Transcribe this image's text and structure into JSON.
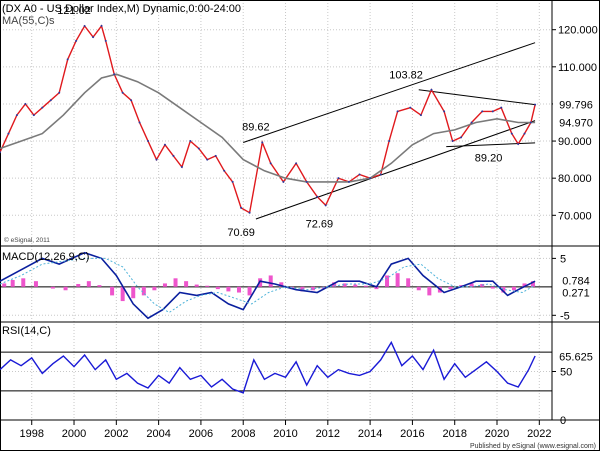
{
  "chart_data": {
    "type": "line",
    "header": {
      "title": "(DX A0 - US Dollar Index,M) Dynamic,0:00-24:00",
      "ma_label": "MA(55,C)s",
      "watermark": "© eSignal, 2011"
    },
    "x_ticks": [
      "1998",
      "2000",
      "2002",
      "2004",
      "2006",
      "2008",
      "2010",
      "2012",
      "2014",
      "2016",
      "2018",
      "2020",
      "2022"
    ],
    "price_panel": {
      "y_range": [
        62,
        128
      ],
      "y_ticks": [
        "120.000",
        "110.000",
        "100.000",
        "90.000",
        "80.000",
        "70.000"
      ],
      "last_value_label": "99.796",
      "ma_value_label": "94.970",
      "series": [
        {
          "key": "price",
          "color": "#e0191d",
          "x": [
            1996.5,
            1996.9,
            1997.3,
            1997.7,
            1998.1,
            1998.5,
            1998.9,
            1999.3,
            1999.7,
            2000.1,
            2000.5,
            2000.9,
            2001.3,
            2001.5,
            2001.9,
            2002.3,
            2002.7,
            2003.1,
            2003.5,
            2003.9,
            2004.3,
            2004.7,
            2005.1,
            2005.5,
            2005.9,
            2006.3,
            2006.7,
            2007.1,
            2007.5,
            2007.9,
            2008.3,
            2008.9,
            2009.3,
            2009.9,
            2010.5,
            2011.0,
            2011.5,
            2011.9,
            2012.5,
            2013.0,
            2013.5,
            2014.0,
            2014.5,
            2014.9,
            2015.3,
            2015.9,
            2016.4,
            2016.9,
            2017.5,
            2017.9,
            2018.3,
            2018.8,
            2019.3,
            2019.8,
            2020.2,
            2020.7,
            2021.0,
            2021.3,
            2021.6,
            2021.8
          ],
          "y": [
            87,
            92,
            97,
            100,
            97,
            99,
            101,
            103,
            112,
            117,
            121,
            118,
            121.02,
            117,
            108,
            103,
            101,
            95,
            90,
            85,
            89,
            86,
            83,
            90,
            88,
            85,
            86,
            82,
            79,
            72,
            70.69,
            89.62,
            84,
            79,
            84,
            79,
            75,
            72.69,
            80,
            79,
            81,
            80,
            81,
            90,
            98,
            99,
            97,
            103.82,
            98,
            90,
            91,
            95,
            98,
            98,
            99,
            92,
            89.2,
            92,
            95,
            99.8
          ]
        },
        {
          "key": "ma55",
          "color": "#7a7a7a",
          "x": [
            1996.5,
            1997.5,
            1998.5,
            1999.5,
            2000.5,
            2001.3,
            2002.0,
            2003.0,
            2004.0,
            2005.0,
            2006.0,
            2007.0,
            2008.0,
            2009.0,
            2010.0,
            2011.0,
            2012.0,
            2013.0,
            2014.0,
            2015.0,
            2016.0,
            2017.0,
            2018.0,
            2019.0,
            2020.0,
            2021.0,
            2021.8
          ],
          "y": [
            88,
            90,
            92,
            97,
            103,
            107,
            108,
            106,
            103,
            99,
            95,
            91,
            85,
            82,
            80,
            79,
            79,
            79,
            80,
            84,
            89,
            92,
            93,
            95,
            96,
            95,
            95
          ]
        }
      ],
      "channel_lines": [
        {
          "x": [
            2008.0,
            2021.8
          ],
          "y": [
            89.62,
            116.5
          ]
        },
        {
          "x": [
            2008.6,
            2021.8
          ],
          "y": [
            69.0,
            95.5
          ]
        },
        {
          "x": [
            2016.3,
            2021.8
          ],
          "y": [
            103.82,
            99.8
          ]
        },
        {
          "x": [
            2017.6,
            2021.8
          ],
          "y": [
            88.5,
            89.5
          ]
        }
      ],
      "annotations": [
        {
          "text": "121.02",
          "x": 2000.0,
          "y": 124.2
        },
        {
          "text": "89.62",
          "x": 2008.6,
          "y": 92.8
        },
        {
          "text": "103.82",
          "x": 2015.7,
          "y": 106.8
        },
        {
          "text": "70.69",
          "x": 2007.9,
          "y": 64.4
        },
        {
          "text": "72.69",
          "x": 2011.6,
          "y": 66.7
        },
        {
          "text": "89.20",
          "x": 2019.6,
          "y": 84.5
        }
      ]
    },
    "macd_panel": {
      "label": "MACD(12,26,9,C)",
      "y_range": [
        -6,
        7
      ],
      "y_ticks": [
        "5",
        "-5"
      ],
      "value_labels": [
        "0.784",
        "0.271"
      ],
      "series": [
        {
          "key": "macd",
          "color": "#0a1f9e",
          "x": [
            1996.5,
            1997.5,
            1998.5,
            1999.3,
            2000.5,
            2001.3,
            2002.0,
            2002.8,
            2003.5,
            2004.2,
            2005.0,
            2005.8,
            2006.5,
            2007.3,
            2008.0,
            2008.8,
            2009.5,
            2010.5,
            2011.5,
            2012.5,
            2013.5,
            2014.3,
            2015.0,
            2015.8,
            2016.5,
            2017.5,
            2018.3,
            2019.0,
            2019.8,
            2020.5,
            2021.0,
            2021.8
          ],
          "y": [
            1,
            3,
            5,
            4,
            6,
            5,
            2,
            -3,
            -5.5,
            -4,
            -1,
            -1.5,
            -1,
            -3,
            -4,
            1,
            0.5,
            -0.5,
            -1,
            1,
            1,
            0,
            4,
            5,
            2,
            -1,
            0,
            1,
            1,
            -1.5,
            -0.5,
            1
          ]
        },
        {
          "key": "signal",
          "color": "#4fb3d9",
          "dash": "2,2",
          "x": [
            1996.5,
            1997.5,
            1998.5,
            1999.5,
            2000.5,
            2001.5,
            2002.3,
            2003.0,
            2003.8,
            2004.5,
            2005.3,
            2006.0,
            2006.8,
            2007.6,
            2008.4,
            2009.2,
            2010.0,
            2011.0,
            2012.0,
            2013.0,
            2014.0,
            2014.8,
            2015.6,
            2016.4,
            2017.2,
            2018.0,
            2018.8,
            2019.6,
            2020.4,
            2021.2,
            2021.8
          ],
          "y": [
            0.5,
            2,
            4,
            4.5,
            5,
            5,
            3.5,
            0,
            -3,
            -4.5,
            -2.5,
            -1.5,
            -1,
            -2,
            -3,
            -1,
            0,
            -0.5,
            0,
            0.5,
            0.5,
            1.5,
            3.5,
            4,
            1.5,
            0,
            0,
            0.5,
            -0.5,
            -1,
            0.3
          ]
        },
        {
          "key": "histogram",
          "type": "bar",
          "color": "#ee55cc",
          "x": [
            1996.7,
            1997.1,
            1997.6,
            1998.2,
            1999.0,
            1999.6,
            2000.2,
            2000.7,
            2001.2,
            2001.8,
            2002.3,
            2002.8,
            2003.3,
            2003.8,
            2004.3,
            2004.8,
            2005.3,
            2005.8,
            2006.3,
            2006.8,
            2007.3,
            2007.8,
            2008.3,
            2008.8,
            2009.3,
            2009.8,
            2010.3,
            2010.8,
            2011.3,
            2011.8,
            2012.3,
            2012.8,
            2013.3,
            2013.8,
            2014.3,
            2014.8,
            2015.3,
            2015.8,
            2016.3,
            2016.8,
            2017.3,
            2017.8,
            2018.3,
            2018.8,
            2019.3,
            2019.8,
            2020.3,
            2020.8,
            2021.3,
            2021.7
          ],
          "y": [
            0.6,
            1.2,
            1.5,
            1.0,
            -0.3,
            -0.6,
            0.5,
            1.0,
            0.3,
            -1.5,
            -2.5,
            -2.0,
            -1.5,
            -0.6,
            0.6,
            1.5,
            1.0,
            0.4,
            0.2,
            -0.4,
            -0.8,
            -1.0,
            -1.5,
            1.5,
            2.0,
            0.8,
            -0.4,
            -0.8,
            -0.6,
            -0.3,
            0.8,
            0.6,
            0.4,
            0.2,
            -0.4,
            2.0,
            2.4,
            1.5,
            -0.6,
            -1.5,
            -1.0,
            -0.4,
            0.3,
            0.6,
            0.5,
            -0.3,
            -1.0,
            -0.6,
            0.6,
            1.0
          ]
        }
      ]
    },
    "rsi_panel": {
      "label": "RSI(14,C)",
      "y_range": [
        0,
        100
      ],
      "y_ticks": [
        "50",
        "0"
      ],
      "reference_levels": [
        70,
        30
      ],
      "value_label": "65.625",
      "series": [
        {
          "key": "rsi",
          "color": "#1a1ad6",
          "x": [
            1996.5,
            1997.0,
            1997.5,
            1998.0,
            1998.5,
            1999.0,
            1999.5,
            2000.0,
            2000.5,
            2001.0,
            2001.5,
            2002.0,
            2002.5,
            2003.0,
            2003.5,
            2004.0,
            2004.5,
            2005.0,
            2005.5,
            2006.0,
            2006.5,
            2007.0,
            2007.5,
            2008.0,
            2008.5,
            2009.0,
            2009.5,
            2010.0,
            2010.5,
            2011.0,
            2011.5,
            2012.0,
            2012.5,
            2013.0,
            2013.5,
            2014.0,
            2014.5,
            2015.0,
            2015.5,
            2016.0,
            2016.5,
            2017.0,
            2017.5,
            2018.0,
            2018.5,
            2019.0,
            2019.5,
            2020.0,
            2020.5,
            2021.0,
            2021.5,
            2021.8
          ],
          "y": [
            52,
            62,
            56,
            64,
            48,
            58,
            66,
            55,
            67,
            52,
            62,
            42,
            48,
            38,
            33,
            46,
            38,
            54,
            42,
            46,
            34,
            42,
            32,
            28,
            62,
            42,
            48,
            44,
            60,
            36,
            56,
            44,
            52,
            48,
            46,
            50,
            62,
            80,
            56,
            66,
            52,
            72,
            42,
            58,
            44,
            52,
            60,
            50,
            38,
            34,
            52,
            66
          ]
        }
      ]
    },
    "footer": "Published by eSignal (www.esignal.com)"
  }
}
